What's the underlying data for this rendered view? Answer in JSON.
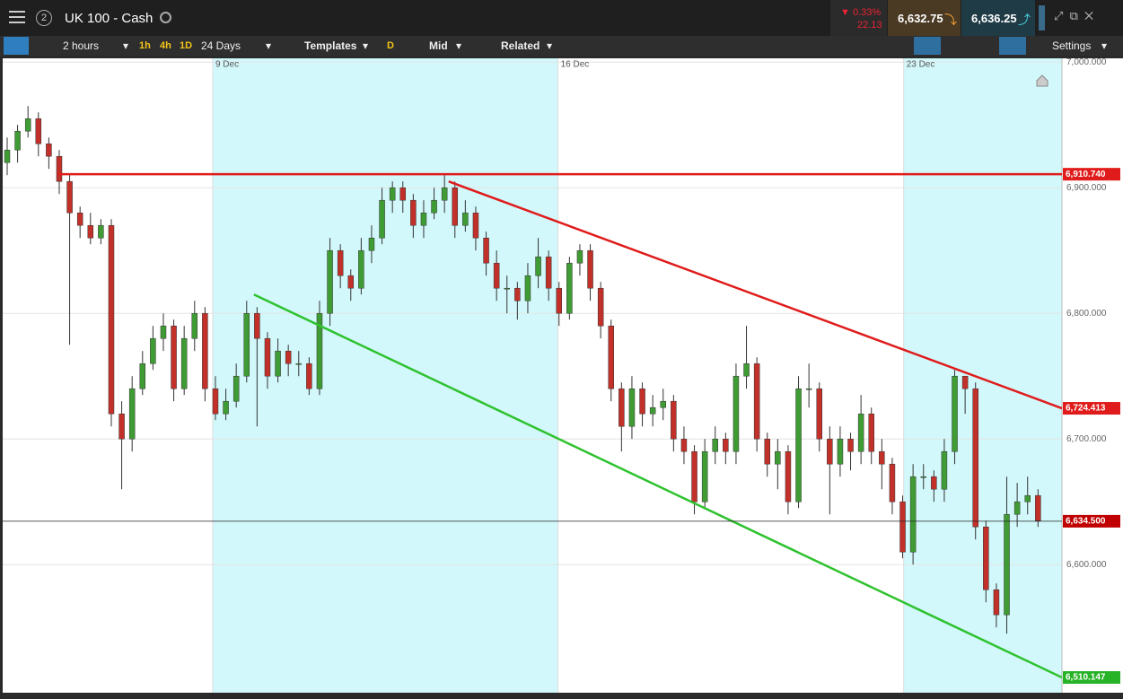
{
  "header": {
    "badge": "2",
    "instrument": "UK 100 - Cash",
    "change_pct": "0.33%",
    "change_abs": "22.13",
    "sell": "6,632.75",
    "buy": "6,636.25"
  },
  "toolbar": {
    "interval": "2 hours",
    "quick": [
      "1h",
      "4h",
      "1D"
    ],
    "range": "24 Days",
    "templates": "Templates",
    "d": "D",
    "price": "Mid",
    "related": "Related",
    "settings": "Settings"
  },
  "chart_data": {
    "type": "candlestick",
    "up_color": "#3f9b33",
    "down_color": "#c2302a",
    "xlim": [
      -0.43,
      101.3
    ],
    "ylim": [
      6498,
      7003
    ],
    "xticks": [
      {
        "value": 19.74,
        "label": "9 Dec"
      },
      {
        "value": 52.9,
        "label": "16 Dec"
      },
      {
        "value": 86.1,
        "label": "23 Dec"
      }
    ],
    "yticks": [
      {
        "value": 6600,
        "label": "6,600.000"
      },
      {
        "value": 6700,
        "label": "6,700.000"
      },
      {
        "value": 6800,
        "label": "6,800.000"
      },
      {
        "value": 6900,
        "label": "6,900.000"
      },
      {
        "value": 7000,
        "label": "7,000.000"
      }
    ],
    "grid": true,
    "open": [
      6920,
      6930,
      6945,
      6955,
      6935,
      6925,
      6905,
      6880,
      6870,
      6860,
      6870,
      6720,
      6700,
      6740,
      6760,
      6780,
      6790,
      6740,
      6780,
      6800,
      6740,
      6720,
      6730,
      6750,
      6800,
      6780,
      6750,
      6770,
      6760,
      6760,
      6740,
      6800,
      6850,
      6830,
      6820,
      6850,
      6860,
      6890,
      6900,
      6890,
      6870,
      6880,
      6890,
      6900,
      6870,
      6880,
      6860,
      6840,
      6820,
      6820,
      6810,
      6830,
      6845,
      6820,
      6800,
      6840,
      6850,
      6820,
      6790,
      6740,
      6710,
      6740,
      6720,
      6725,
      6730,
      6700,
      6690,
      6650,
      6690,
      6700,
      6690,
      6750,
      6760,
      6700,
      6680,
      6690,
      6650,
      6740,
      6740,
      6700,
      6680,
      6700,
      6690,
      6720,
      6690,
      6680,
      6650,
      6610,
      6670,
      6670,
      6660,
      6690,
      6750,
      6740,
      6630,
      6580,
      6560,
      6640,
      6650,
      6655
    ],
    "high": [
      6940,
      6950,
      6965,
      6960,
      6940,
      6930,
      6910,
      6885,
      6880,
      6875,
      6875,
      6730,
      6750,
      6770,
      6790,
      6800,
      6795,
      6790,
      6810,
      6805,
      6750,
      6740,
      6760,
      6810,
      6805,
      6785,
      6780,
      6775,
      6770,
      6765,
      6810,
      6860,
      6855,
      6835,
      6860,
      6870,
      6900,
      6905,
      6905,
      6895,
      6890,
      6900,
      6910,
      6905,
      6890,
      6885,
      6865,
      6850,
      6830,
      6825,
      6840,
      6860,
      6850,
      6825,
      6845,
      6855,
      6855,
      6825,
      6795,
      6745,
      6750,
      6745,
      6735,
      6740,
      6735,
      6710,
      6695,
      6700,
      6710,
      6705,
      6760,
      6790,
      6765,
      6705,
      6700,
      6695,
      6750,
      6760,
      6745,
      6710,
      6710,
      6705,
      6735,
      6725,
      6700,
      6685,
      6655,
      6680,
      6680,
      6675,
      6700,
      6755,
      6750,
      6745,
      6635,
      6585,
      6670,
      6665,
      6670,
      6660
    ],
    "low": [
      6910,
      6920,
      6940,
      6925,
      6915,
      6895,
      6775,
      6860,
      6855,
      6855,
      6710,
      6660,
      6690,
      6735,
      6755,
      6770,
      6730,
      6735,
      6770,
      6730,
      6715,
      6715,
      6725,
      6745,
      6710,
      6740,
      6745,
      6750,
      6750,
      6735,
      6735,
      6790,
      6820,
      6810,
      6815,
      6840,
      6855,
      6880,
      6880,
      6860,
      6860,
      6875,
      6880,
      6860,
      6865,
      6850,
      6830,
      6810,
      6800,
      6795,
      6800,
      6820,
      6810,
      6790,
      6795,
      6830,
      6810,
      6780,
      6730,
      6690,
      6700,
      6710,
      6710,
      6715,
      6690,
      6680,
      6640,
      6645,
      6680,
      6680,
      6680,
      6740,
      6690,
      6670,
      6660,
      6640,
      6645,
      6725,
      6690,
      6640,
      6670,
      6675,
      6680,
      6680,
      6660,
      6640,
      6605,
      6600,
      6660,
      6650,
      6650,
      6680,
      6720,
      6620,
      6570,
      6550,
      6545,
      6630,
      6640,
      6630
    ],
    "close": [
      6930,
      6945,
      6955,
      6935,
      6925,
      6905,
      6880,
      6870,
      6860,
      6870,
      6720,
      6700,
      6740,
      6760,
      6780,
      6790,
      6740,
      6780,
      6800,
      6740,
      6720,
      6730,
      6750,
      6800,
      6780,
      6750,
      6770,
      6760,
      6760,
      6740,
      6800,
      6850,
      6830,
      6820,
      6850,
      6860,
      6890,
      6900,
      6890,
      6870,
      6880,
      6890,
      6900,
      6870,
      6880,
      6860,
      6840,
      6820,
      6820,
      6810,
      6830,
      6845,
      6820,
      6800,
      6840,
      6850,
      6820,
      6790,
      6740,
      6710,
      6740,
      6720,
      6725,
      6730,
      6700,
      6690,
      6650,
      6690,
      6700,
      6690,
      6750,
      6760,
      6700,
      6680,
      6690,
      6650,
      6740,
      6740,
      6700,
      6680,
      6700,
      6690,
      6720,
      6690,
      6680,
      6650,
      6610,
      6670,
      6670,
      6660,
      6690,
      6750,
      6740,
      6630,
      6580,
      6560,
      6640,
      6650,
      6655,
      6635
    ],
    "horizontal_line": {
      "start": 4.9,
      "value": 6910.74,
      "label": "6,910.740",
      "color": "#e01b1b"
    },
    "trend_lines": [
      {
        "start": [
          42.4,
          6905
        ],
        "end": 6724.413,
        "label": "6,724.413",
        "color": "#e01b1b"
      },
      {
        "start": [
          23.7,
          6815
        ],
        "end": 6510.147,
        "label": "6,510.147",
        "color": "#2fc22f",
        "label_color": "#27b327"
      }
    ],
    "current_price": {
      "value": 6634.5,
      "label": "6,634.500",
      "color": "#c00000"
    }
  }
}
